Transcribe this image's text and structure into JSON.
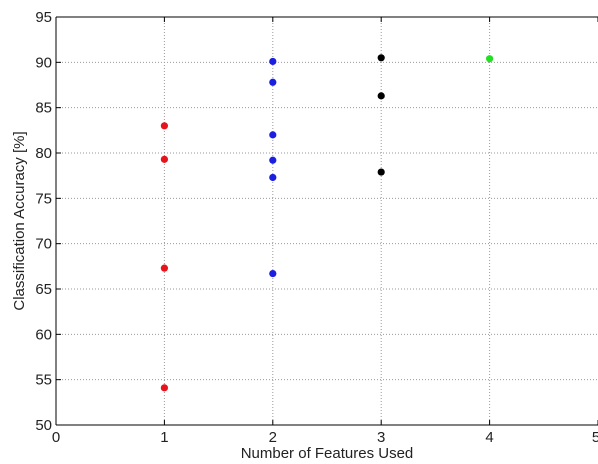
{
  "chart_data": {
    "type": "scatter",
    "title": "",
    "xlabel": "Number of Features Used",
    "ylabel": "Classification Accuracy [%]",
    "xlim": [
      0,
      5
    ],
    "ylim": [
      50,
      95
    ],
    "xticks": [
      0,
      1,
      2,
      3,
      4,
      5
    ],
    "yticks": [
      50,
      55,
      60,
      65,
      70,
      75,
      80,
      85,
      90,
      95
    ],
    "grid": true,
    "legend": "none",
    "series": [
      {
        "color": "#e8141c",
        "points": [
          {
            "x": 1,
            "y": 83.0
          },
          {
            "x": 1,
            "y": 79.3
          },
          {
            "x": 1,
            "y": 67.3
          },
          {
            "x": 1,
            "y": 54.1
          }
        ]
      },
      {
        "color": "#1b1fe0",
        "points": [
          {
            "x": 2,
            "y": 90.1
          },
          {
            "x": 2,
            "y": 87.8
          },
          {
            "x": 2,
            "y": 82.0
          },
          {
            "x": 2,
            "y": 79.2
          },
          {
            "x": 2,
            "y": 77.3
          },
          {
            "x": 2,
            "y": 66.7
          }
        ]
      },
      {
        "color": "#000000",
        "points": [
          {
            "x": 3,
            "y": 90.5
          },
          {
            "x": 3,
            "y": 86.3
          },
          {
            "x": 3,
            "y": 77.9
          }
        ]
      },
      {
        "color": "#22e022",
        "points": [
          {
            "x": 4,
            "y": 90.4
          }
        ]
      }
    ]
  }
}
